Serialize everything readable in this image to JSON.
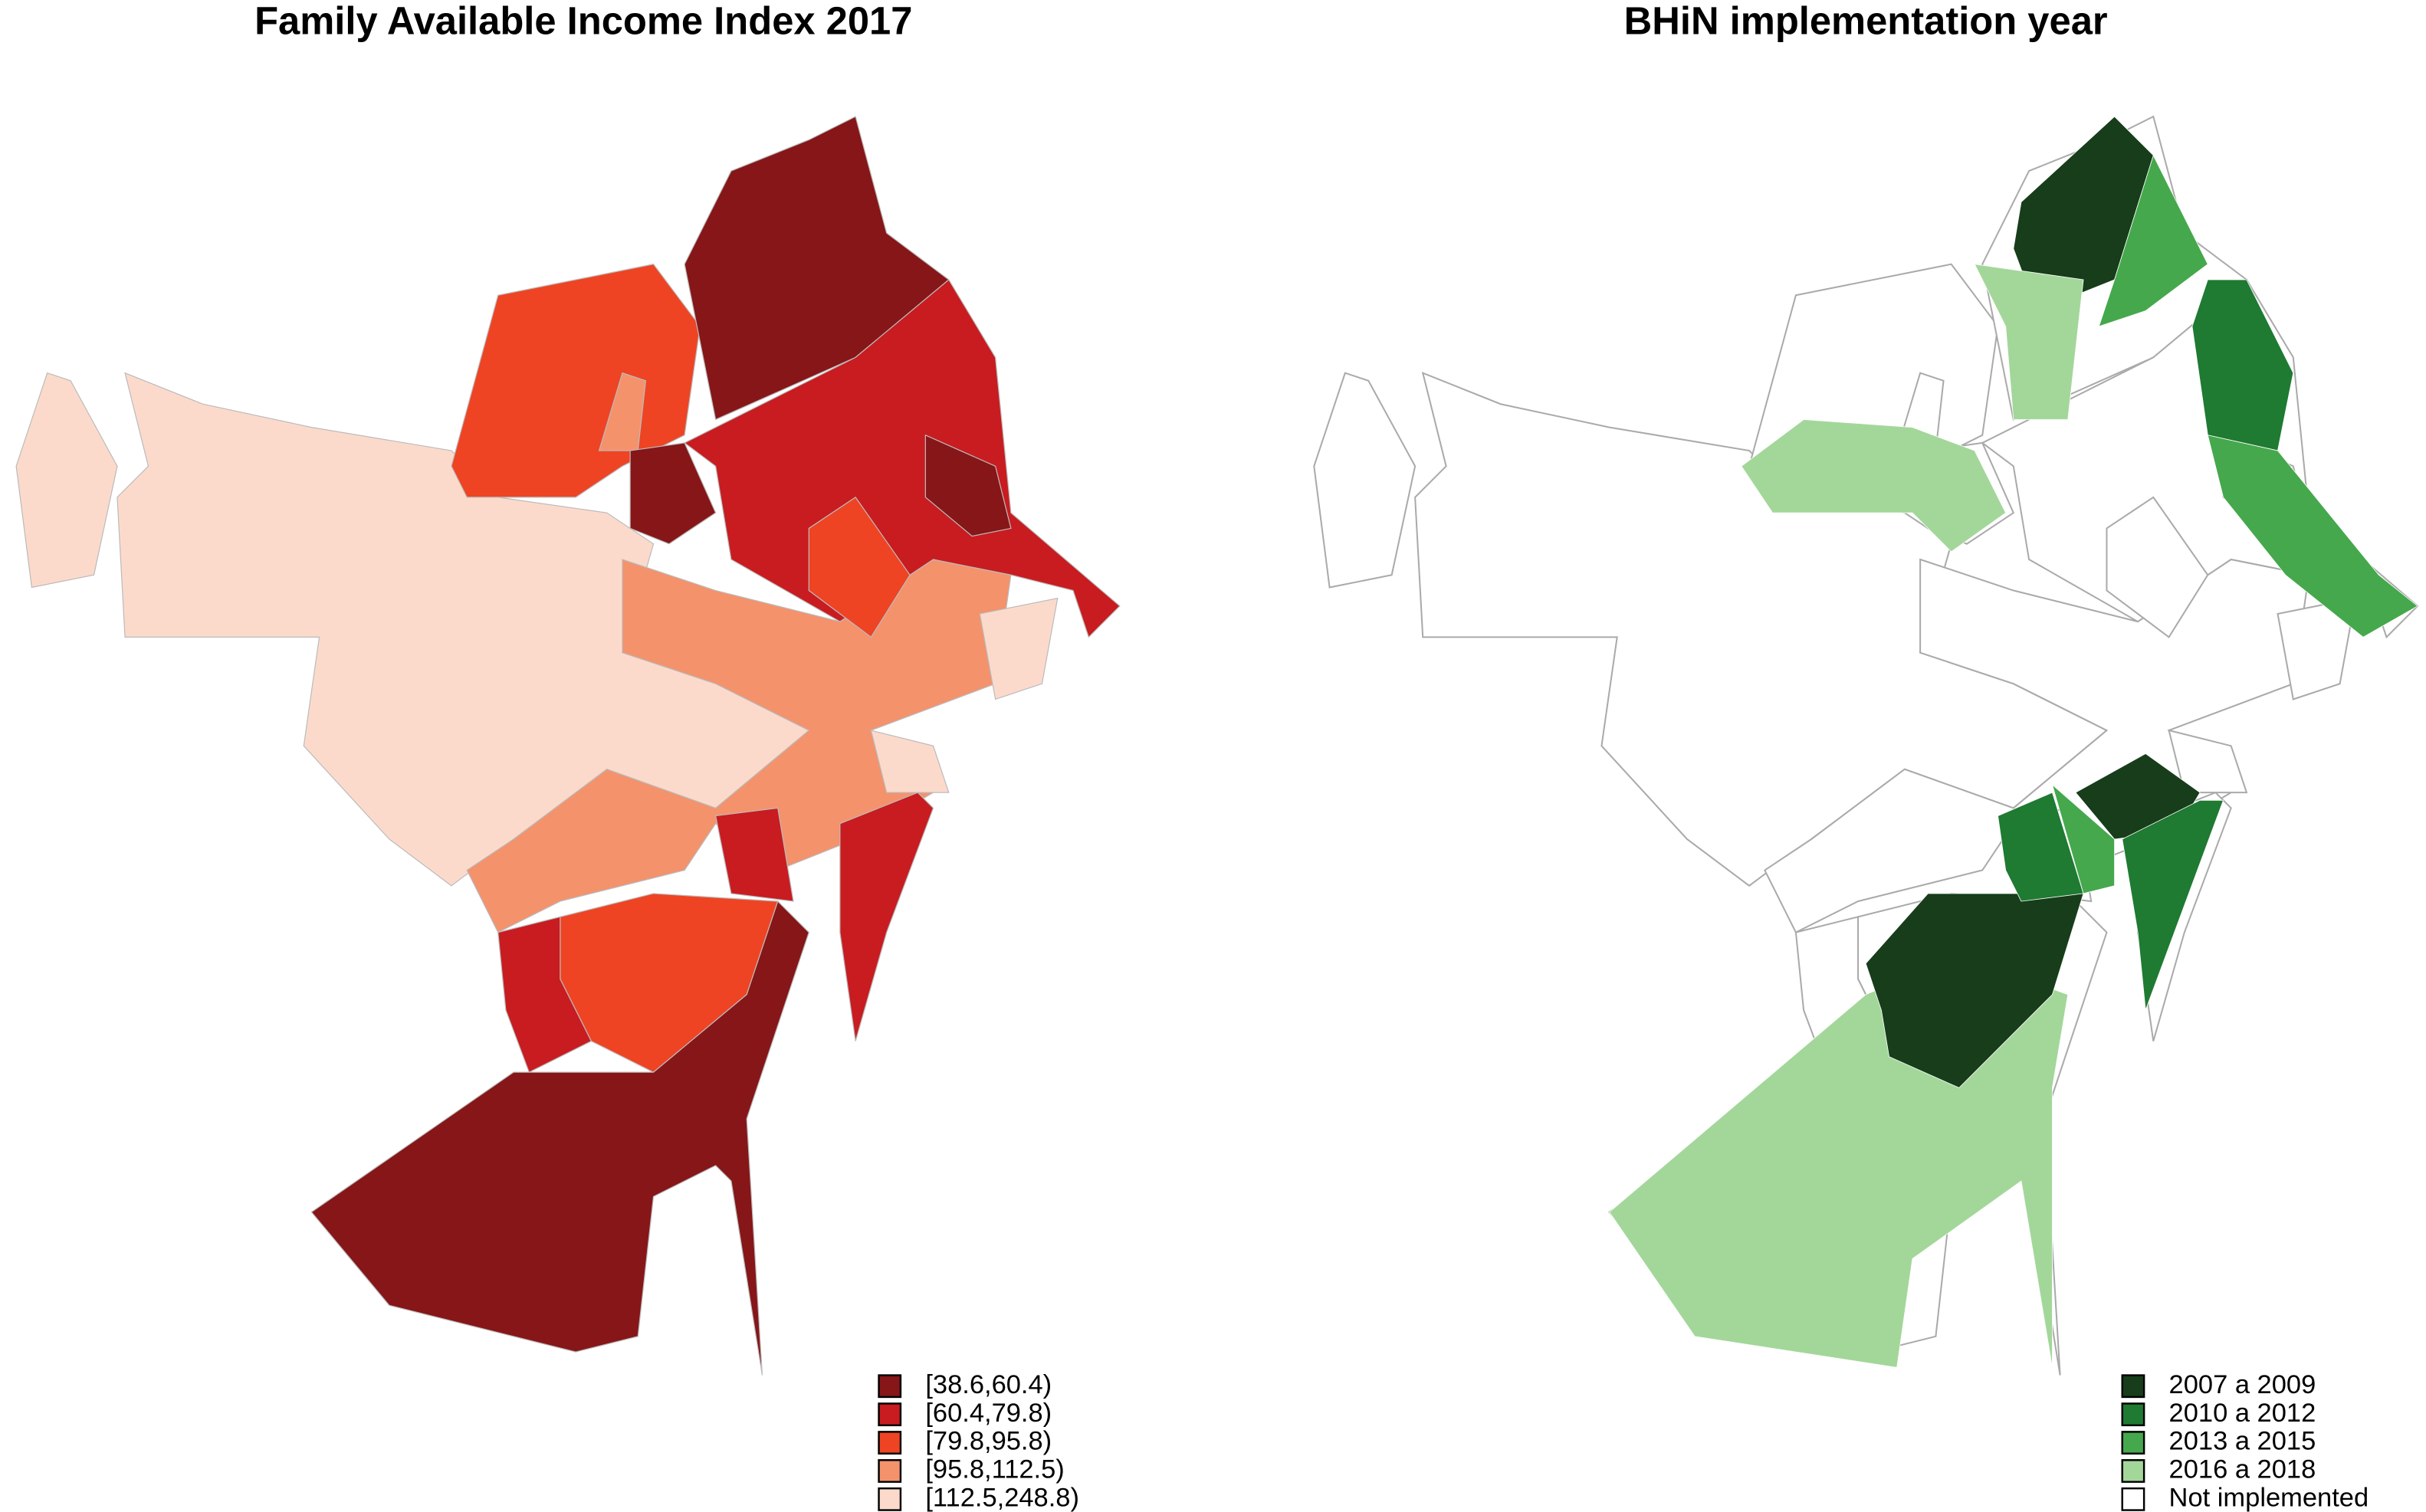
{
  "maps": [
    {
      "title": "Family Available Income Index 2017",
      "legend": [
        {
          "label": "[38.6,60.4)",
          "color": "#861618"
        },
        {
          "label": "[60.4,79.8)",
          "color": "#c81c20"
        },
        {
          "label": "[79.8,95.8)",
          "color": "#ee4424"
        },
        {
          "label": "[95.8,112.5)",
          "color": "#f4926c"
        },
        {
          "label": "[112.5,248.8)",
          "color": "#fcdacb"
        }
      ]
    },
    {
      "title": "BHiN implementation year",
      "legend": [
        {
          "label": "2007 a 2009",
          "color": "#173d1a"
        },
        {
          "label": "2010 a 2012",
          "color": "#1f7a32"
        },
        {
          "label": "2013 a 2015",
          "color": "#45a84c"
        },
        {
          "label": "2016 a 2018",
          "color": "#a3d79a"
        },
        {
          "label": "Not implemented",
          "color": "#ffffff"
        }
      ]
    }
  ]
}
